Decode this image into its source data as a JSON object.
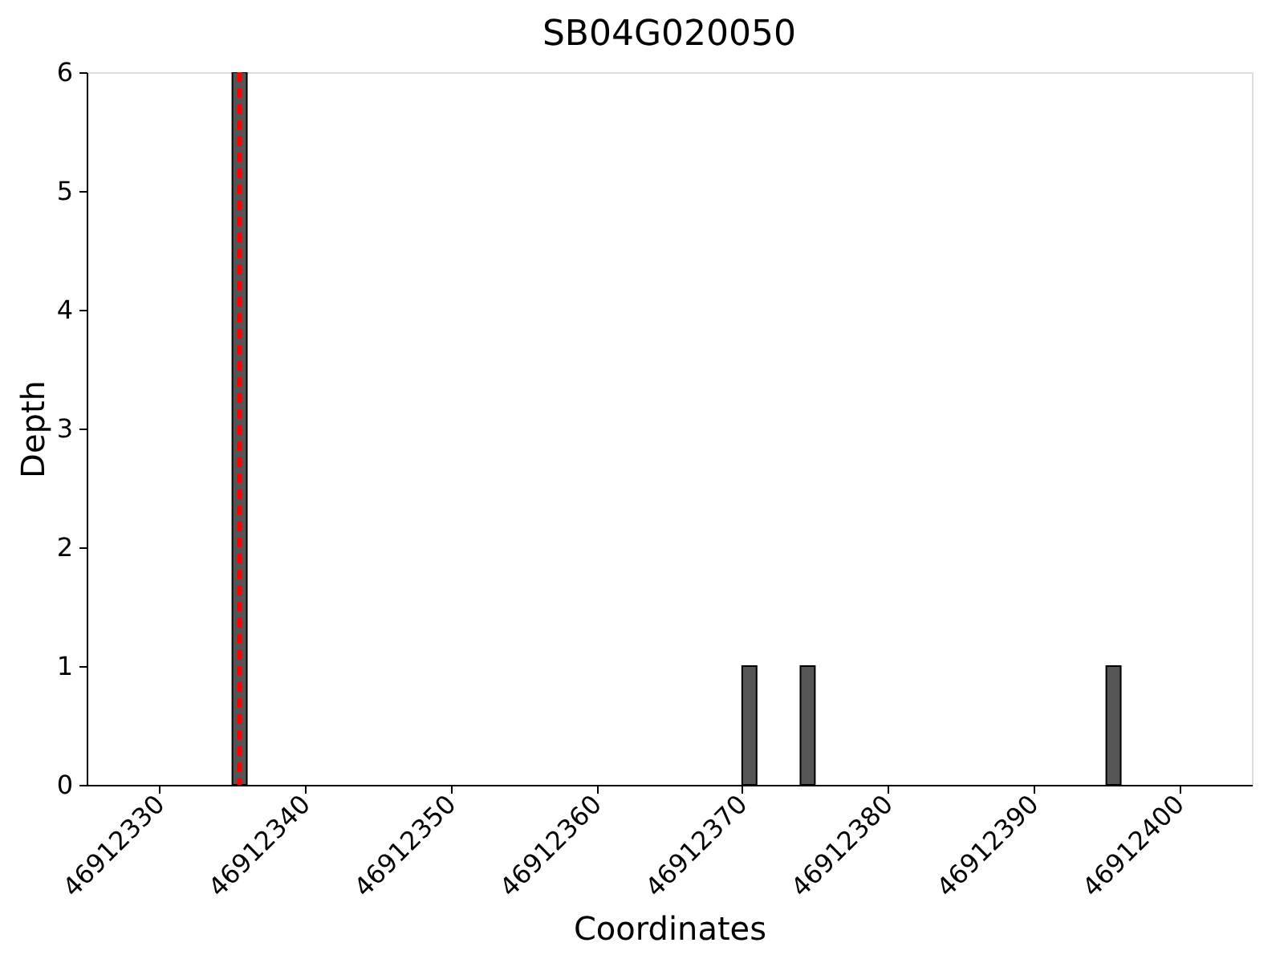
{
  "chart_data": {
    "type": "bar",
    "title": "SB04G020050",
    "xlabel": "Coordinates",
    "ylabel": "Depth",
    "x": [
      46912335.5,
      46912370.5,
      46912374.5,
      46912395.5
    ],
    "series": [
      {
        "color": "#555555",
        "values": [
          6,
          1,
          1,
          1
        ]
      }
    ],
    "xlim": [
      46912325,
      46912405
    ],
    "xticks": [
      46912330,
      46912340,
      46912350,
      46912360,
      46912370,
      46912380,
      46912390,
      46912400
    ],
    "ylim": [
      0,
      6
    ],
    "yticks": [
      0,
      1,
      2,
      3,
      4,
      5,
      6
    ],
    "ref_lines": [
      {
        "axis": "x",
        "value": 46912335.5,
        "color": "#ff0000",
        "line_style": "dashed"
      }
    ],
    "grid": false
  }
}
